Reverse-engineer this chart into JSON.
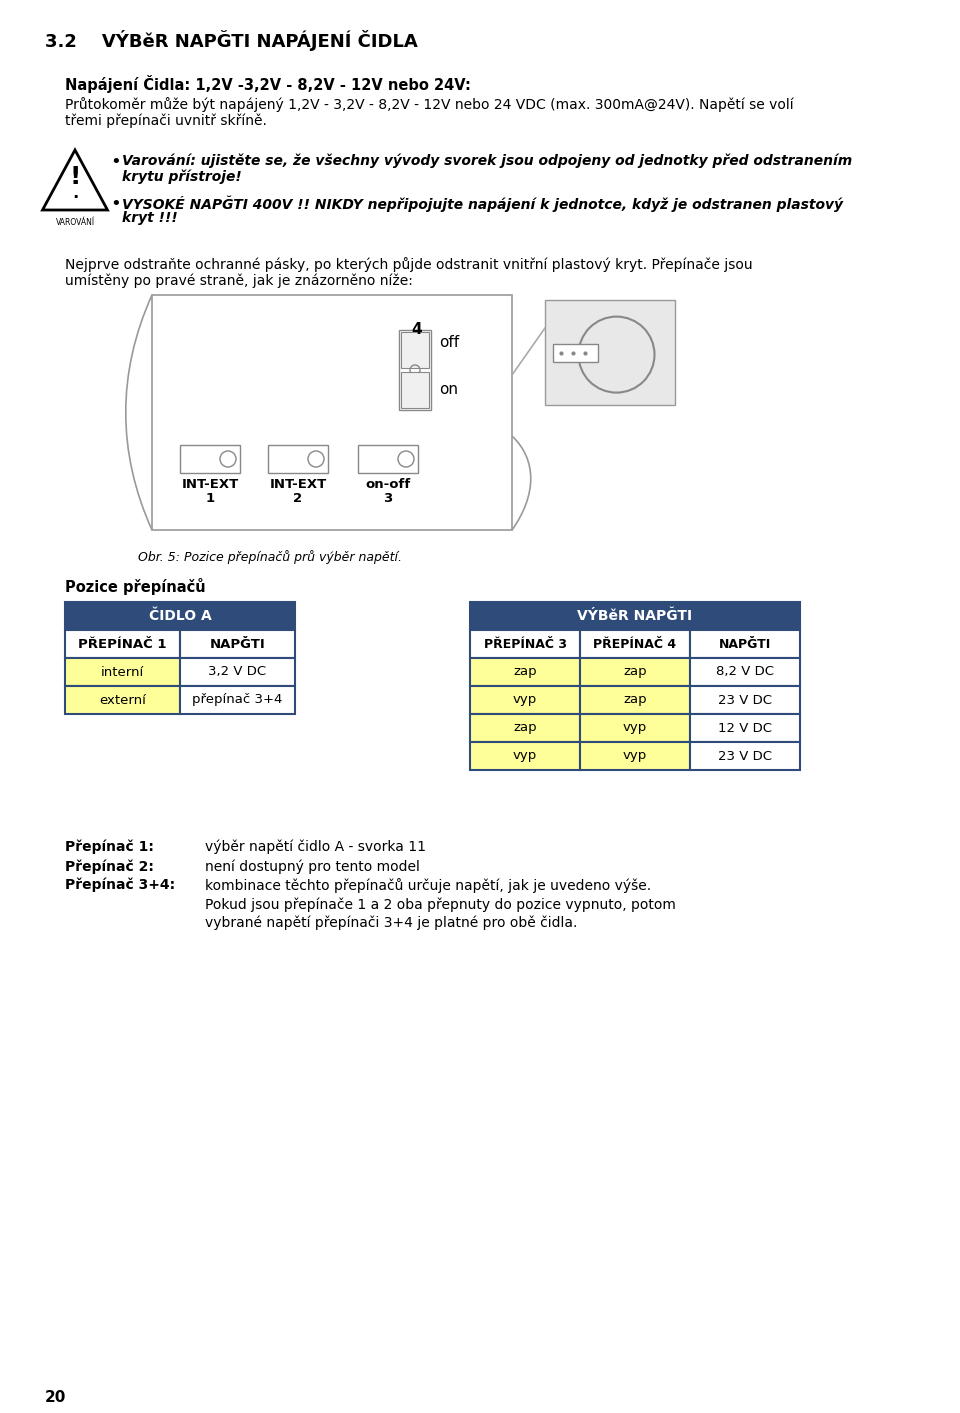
{
  "title": "3.2    VÝBěR NAPĞTI NAPÁJENÍ ČIDLA",
  "bold_heading": "Napájení Čidla: 1,2V -3,2V - 8,2V - 12V nebo 24V:",
  "para1_line1": "Průtokoměr může být napájený 1,2V - 3,2V - 8,2V - 12V nebo 24 VDC (max. 300mA@24V). Napětí se volí",
  "para1_line2": "třemi přepínači uvnitř skříně.",
  "bullet1_line1": "Varování: ujistěte se, že všechny vývody svorek jsou odpojeny od jednotky před odstranením",
  "bullet1_line2": "krytu přístroje!",
  "bullet2_line1": "VYSOKÉ NAPĞTI 400V !! NIKDY nepřipojujte napájení k jednotce, když je odstranen plastový",
  "bullet2_line2": "kryt !!!",
  "para2_line1": "Nejprve odstraňte ochranné pásky, po kterých půjde odstranit vnitřní plastový kryt. Přepínače jsou",
  "para2_line2": "umístěny po pravé straně, jak je znázorněno níže:",
  "caption": "Obr. 5: Pozice přepínačů prů výběr napětí.",
  "pos_heading": "Pozice přepínačů",
  "table1_header": "ČIDLO A",
  "table1_col1": "PŘEPÍNAČ 1",
  "table1_col2": "NAPĞTI",
  "table1_r1c1": "interní",
  "table1_r1c2": "3,2 V DC",
  "table1_r2c1": "externí",
  "table1_r2c2": "přepínač 3+4",
  "table2_header": "VÝBěR NAPĞTI",
  "table2_col1": "PŘEPÍNAČ 3",
  "table2_col2": "PŘEPÍNAČ 4",
  "table2_col3": "NAPĞTI",
  "table2_r1c1": "zap",
  "table2_r1c2": "zap",
  "table2_r1c3": "8,2 V DC",
  "table2_r2c1": "vyp",
  "table2_r2c2": "zap",
  "table2_r2c3": "23 V DC",
  "table2_r3c1": "zap",
  "table2_r3c2": "vyp",
  "table2_r3c3": "12 V DC",
  "table2_r4c1": "vyp",
  "table2_r4c2": "vyp",
  "table2_r4c3": "23 V DC",
  "footnote1_bold": "Přepínač 1:",
  "footnote1_text": "výběr napětí čidlo A - svorka 11",
  "footnote2_bold": "Přepínač 2:",
  "footnote2_text": "není dostupný pro tento model",
  "footnote3_bold": "Přepínač 3+4:",
  "footnote3_text": "kombinace těchto přepínačů určuje napětí, jak je uvedeno výše.",
  "footnote3_line2": "Pokud jsou přepínače 1 a 2 oba přepnuty do pozice vypnuto, potom",
  "footnote3_line3": "vybrané napětí přepínači 3+4 je platné pro obě čidla.",
  "page_num": "20",
  "header_color": "#2E4B7A",
  "yellow_color": "#FFFF99",
  "border_color": "#2E4B7A",
  "bg_color": "#ffffff"
}
